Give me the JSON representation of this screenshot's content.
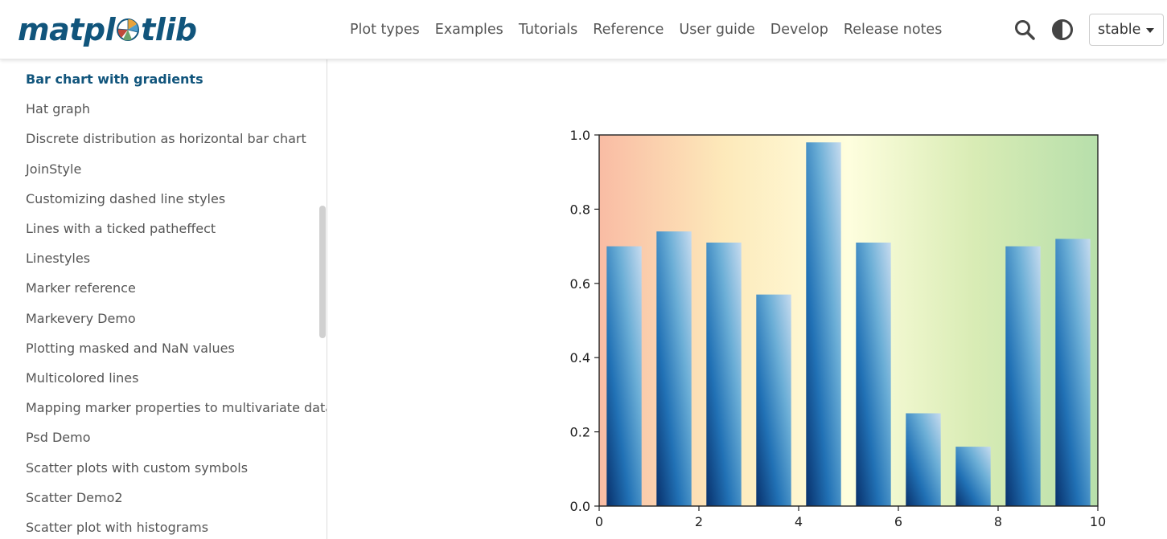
{
  "header": {
    "logo_text_left": "matpl",
    "logo_text_right": "tlib",
    "nav": [
      "Plot types",
      "Examples",
      "Tutorials",
      "Reference",
      "User guide",
      "Develop",
      "Release notes"
    ],
    "version_label": "stable",
    "icons": {
      "search": "search-icon",
      "theme": "theme-toggle-icon",
      "version": "chevron-down-icon"
    }
  },
  "sidebar": {
    "items": [
      {
        "label": "Bar chart with gradients",
        "active": true
      },
      {
        "label": "Hat graph"
      },
      {
        "label": "Discrete distribution as horizontal bar chart"
      },
      {
        "label": "JoinStyle"
      },
      {
        "label": "Customizing dashed line styles"
      },
      {
        "label": "Lines with a ticked patheffect"
      },
      {
        "label": "Linestyles"
      },
      {
        "label": "Marker reference"
      },
      {
        "label": "Markevery Demo"
      },
      {
        "label": "Plotting masked and NaN values"
      },
      {
        "label": "Multicolored lines"
      },
      {
        "label": "Mapping marker properties to multivariate data"
      },
      {
        "label": "Psd Demo"
      },
      {
        "label": "Scatter plots with custom symbols"
      },
      {
        "label": "Scatter Demo2"
      },
      {
        "label": "Scatter plot with histograms"
      }
    ]
  },
  "chart_data": {
    "type": "bar",
    "title": "",
    "xlabel": "",
    "ylabel": "",
    "xlim": [
      0,
      10
    ],
    "ylim": [
      0,
      1.0
    ],
    "xticks": [
      0,
      2,
      4,
      6,
      8,
      10
    ],
    "yticks": [
      0.0,
      0.2,
      0.4,
      0.6,
      0.8,
      1.0
    ],
    "ytick_labels": [
      "0.0",
      "0.2",
      "0.4",
      "0.6",
      "0.8",
      "1.0"
    ],
    "bar_width": 0.7,
    "x": [
      0.5,
      1.5,
      2.5,
      3.5,
      4.5,
      5.5,
      6.5,
      7.5,
      8.5,
      9.5
    ],
    "values": [
      0.7,
      0.74,
      0.71,
      0.57,
      0.98,
      0.71,
      0.25,
      0.16,
      0.7,
      0.72
    ],
    "grid": false,
    "legend": "none",
    "background_gradient": [
      "#f9bca4",
      "#fde9ba",
      "#fefede",
      "#d9ecb5",
      "#b7dfab"
    ],
    "bar_gradient": [
      "#08306b",
      "#2171b5",
      "#6baed6",
      "#c6dbef"
    ]
  }
}
